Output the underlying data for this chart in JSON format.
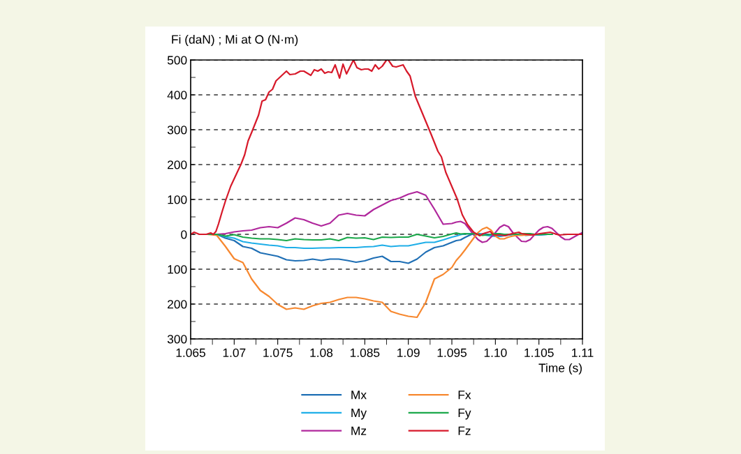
{
  "chart_data": {
    "type": "line",
    "ylabel": "Fi (daN) ; Mi at O (N·m)",
    "xlabel": "Time (s)",
    "x": [
      1.067,
      1.068,
      1.069,
      1.07,
      1.071,
      1.072,
      1.073,
      1.074,
      1.075,
      1.076,
      1.077,
      1.078,
      1.079,
      1.08,
      1.081,
      1.082,
      1.083,
      1.084,
      1.085,
      1.086,
      1.087,
      1.088,
      1.089,
      1.09,
      1.091,
      1.092,
      1.093,
      1.094,
      1.095,
      1.0955,
      1.096,
      1.0965,
      1.097,
      1.0975,
      1.098,
      1.0985,
      1.099,
      1.0995,
      1.1,
      1.1005,
      1.101,
      1.1015,
      1.102,
      1.1025,
      1.103,
      1.1035,
      1.104,
      1.1045,
      1.105,
      1.1055,
      1.106,
      1.1065,
      1.107,
      1.1075,
      1.108,
      1.1085,
      1.109,
      1.1095,
      1.11
    ],
    "series": [
      {
        "name": "Mx",
        "color": "#1f6fb5",
        "values": [
          0,
          0,
          -11,
          -18,
          -35,
          -40,
          -53,
          -58,
          -63,
          -73,
          -76,
          -75,
          -71,
          -75,
          -71,
          -71,
          -75,
          -80,
          -76,
          -68,
          -63,
          -78,
          -78,
          -83,
          -71,
          -51,
          -38,
          -33,
          -23,
          -18,
          -16,
          -9,
          -3,
          2,
          2,
          1,
          0,
          -2,
          -5,
          -6,
          -4,
          -2,
          0,
          0,
          0,
          -3,
          -2,
          -2,
          -2,
          -1,
          0,
          0,
          null,
          null,
          null,
          null,
          null,
          null,
          null
        ]
      },
      {
        "name": "My",
        "color": "#1eaee8",
        "values": [
          0,
          0,
          -7,
          -11,
          -21,
          -25,
          -28,
          -31,
          -33,
          -38,
          -38,
          -40,
          -40,
          -39,
          -39,
          -38,
          -38,
          -38,
          -36,
          -35,
          -31,
          -35,
          -33,
          -33,
          -28,
          -23,
          -23,
          -16,
          -8,
          -5,
          -1,
          1,
          2,
          2,
          1,
          0,
          -3,
          -5,
          -6,
          -5,
          -3,
          -2,
          -1,
          0,
          0,
          -1,
          -2,
          -2,
          -2,
          -1,
          0,
          0,
          null,
          null,
          null,
          null,
          null,
          null,
          null
        ]
      },
      {
        "name": "Mz",
        "color": "#b0279c",
        "values": [
          0,
          0,
          2,
          7,
          10,
          12,
          19,
          22,
          19,
          32,
          47,
          42,
          32,
          24,
          32,
          55,
          60,
          55,
          53,
          71,
          84,
          97,
          104,
          115,
          122,
          112,
          72,
          29,
          31,
          35,
          37,
          31,
          15,
          -1,
          -15,
          -23,
          -20,
          -8,
          5,
          20,
          27,
          22,
          5,
          -8,
          -20,
          -21,
          -15,
          -1,
          12,
          20,
          22,
          17,
          5,
          -7,
          -15,
          -15,
          -8,
          -1,
          5
        ]
      },
      {
        "name": "Fx",
        "color": "#f7882f",
        "values": [
          0,
          -3,
          -35,
          -70,
          -81,
          -128,
          -161,
          -178,
          -201,
          -215,
          -211,
          -215,
          -205,
          -198,
          -195,
          -187,
          -181,
          -181,
          -185,
          -191,
          -195,
          -221,
          -229,
          -235,
          -238,
          -195,
          -128,
          -115,
          -95,
          -75,
          -61,
          -45,
          -28,
          -11,
          5,
          15,
          20,
          12,
          -5,
          -13,
          -13,
          -8,
          -5,
          -3,
          -3,
          -2,
          -2,
          -1,
          null,
          null,
          null,
          null,
          null,
          null,
          null,
          null,
          null,
          null,
          null
        ]
      },
      {
        "name": "Fy",
        "color": "#1aa84a",
        "values": [
          0,
          0,
          -5,
          -1,
          -8,
          -11,
          -13,
          -13,
          -15,
          -18,
          -13,
          -15,
          -16,
          -16,
          -13,
          -18,
          -9,
          -11,
          -10,
          -15,
          -8,
          -9,
          -8,
          -8,
          0,
          -5,
          -10,
          -6,
          1,
          4,
          1,
          2,
          1,
          2,
          0,
          -3,
          -2,
          0,
          2,
          2,
          0,
          0,
          0,
          0,
          2,
          2,
          2,
          0,
          -1,
          0,
          0,
          0,
          null,
          null,
          null,
          null,
          null,
          null,
          null
        ]
      },
      {
        "name": "Fz",
        "color": "#d7192a",
        "x": [
          1.065,
          1.0654,
          1.066,
          1.0668,
          1.0673,
          1.0676,
          1.0679,
          1.0682,
          1.0686,
          1.069,
          1.0696,
          1.0708,
          1.0712,
          1.0716,
          1.072,
          1.0728,
          1.0732,
          1.0736,
          1.074,
          1.0744,
          1.0748,
          1.076,
          1.0764,
          1.077,
          1.0776,
          1.078,
          1.0788,
          1.0792,
          1.0796,
          1.08,
          1.0804,
          1.0808,
          1.0812,
          1.0816,
          1.0821,
          1.0825,
          1.0829,
          1.0837,
          1.0841,
          1.0846,
          1.085,
          1.0854,
          1.0858,
          1.0862,
          1.0866,
          1.087,
          1.0875,
          1.0877,
          1.0882,
          1.0886,
          1.0894,
          1.0898,
          1.0902,
          1.0908,
          1.0916,
          1.0926,
          1.0934,
          1.0938,
          1.0943,
          1.0956,
          1.0962,
          1.0968,
          1.0975,
          1.0982,
          1.0986,
          1.0994,
          1.0998,
          1.1006,
          1.1011,
          1.1019,
          1.1027,
          1.103,
          1.1041,
          1.1051,
          1.1063,
          1.1073,
          1.1083,
          1.1099
        ],
        "values": [
          0,
          6,
          0,
          0,
          4,
          0,
          8,
          30,
          64,
          96,
          138,
          202,
          228,
          268,
          292,
          342,
          382,
          386,
          408,
          416,
          440,
          468,
          458,
          460,
          468,
          468,
          456,
          472,
          468,
          474,
          462,
          466,
          464,
          486,
          448,
          488,
          460,
          500,
          478,
          472,
          474,
          474,
          468,
          486,
          474,
          482,
          500,
          500,
          482,
          480,
          486,
          468,
          454,
          396,
          348,
          288,
          238,
          222,
          178,
          102,
          56,
          28,
          6,
          -4,
          2,
          8,
          -2,
          -2,
          -4,
          2,
          6,
          2,
          -2,
          2,
          6,
          -2,
          0,
          0
        ]
      }
    ],
    "xlim": [
      1.065,
      1.11
    ],
    "xticks": [
      1.065,
      {
        "value": 1.0675,
        "label": null
      },
      1.07,
      {
        "value": 1.0725,
        "label": null
      },
      1.075,
      {
        "value": 1.0775,
        "label": null
      },
      1.08,
      {
        "value": 1.0825,
        "label": null
      },
      1.085,
      {
        "value": 1.0875,
        "label": null
      },
      1.09,
      {
        "value": 1.0925,
        "label": null
      },
      1.095,
      {
        "value": 1.0975,
        "label": null
      },
      {
        "value": 1.1,
        "label": "1.10"
      },
      {
        "value": 1.1025,
        "label": null
      },
      1.105,
      {
        "value": 1.1075,
        "label": null
      },
      1.11
    ],
    "ylim": [
      -300,
      500
    ],
    "yticks": [
      {
        "value": -300,
        "label": "300"
      },
      {
        "value": -250,
        "label": null
      },
      {
        "value": -200,
        "label": "200"
      },
      {
        "value": -150,
        "label": null
      },
      {
        "value": -100,
        "label": "100"
      },
      {
        "value": -50,
        "label": null
      },
      0,
      {
        "value": 50,
        "label": null
      },
      100,
      {
        "value": 150,
        "label": null
      },
      200,
      {
        "value": 250,
        "label": null
      },
      300,
      {
        "value": 350,
        "label": null
      },
      400,
      {
        "value": 450,
        "label": null
      },
      500
    ],
    "grid": "y",
    "legend": "bottom",
    "line_style": "solid",
    "marker": "none"
  }
}
